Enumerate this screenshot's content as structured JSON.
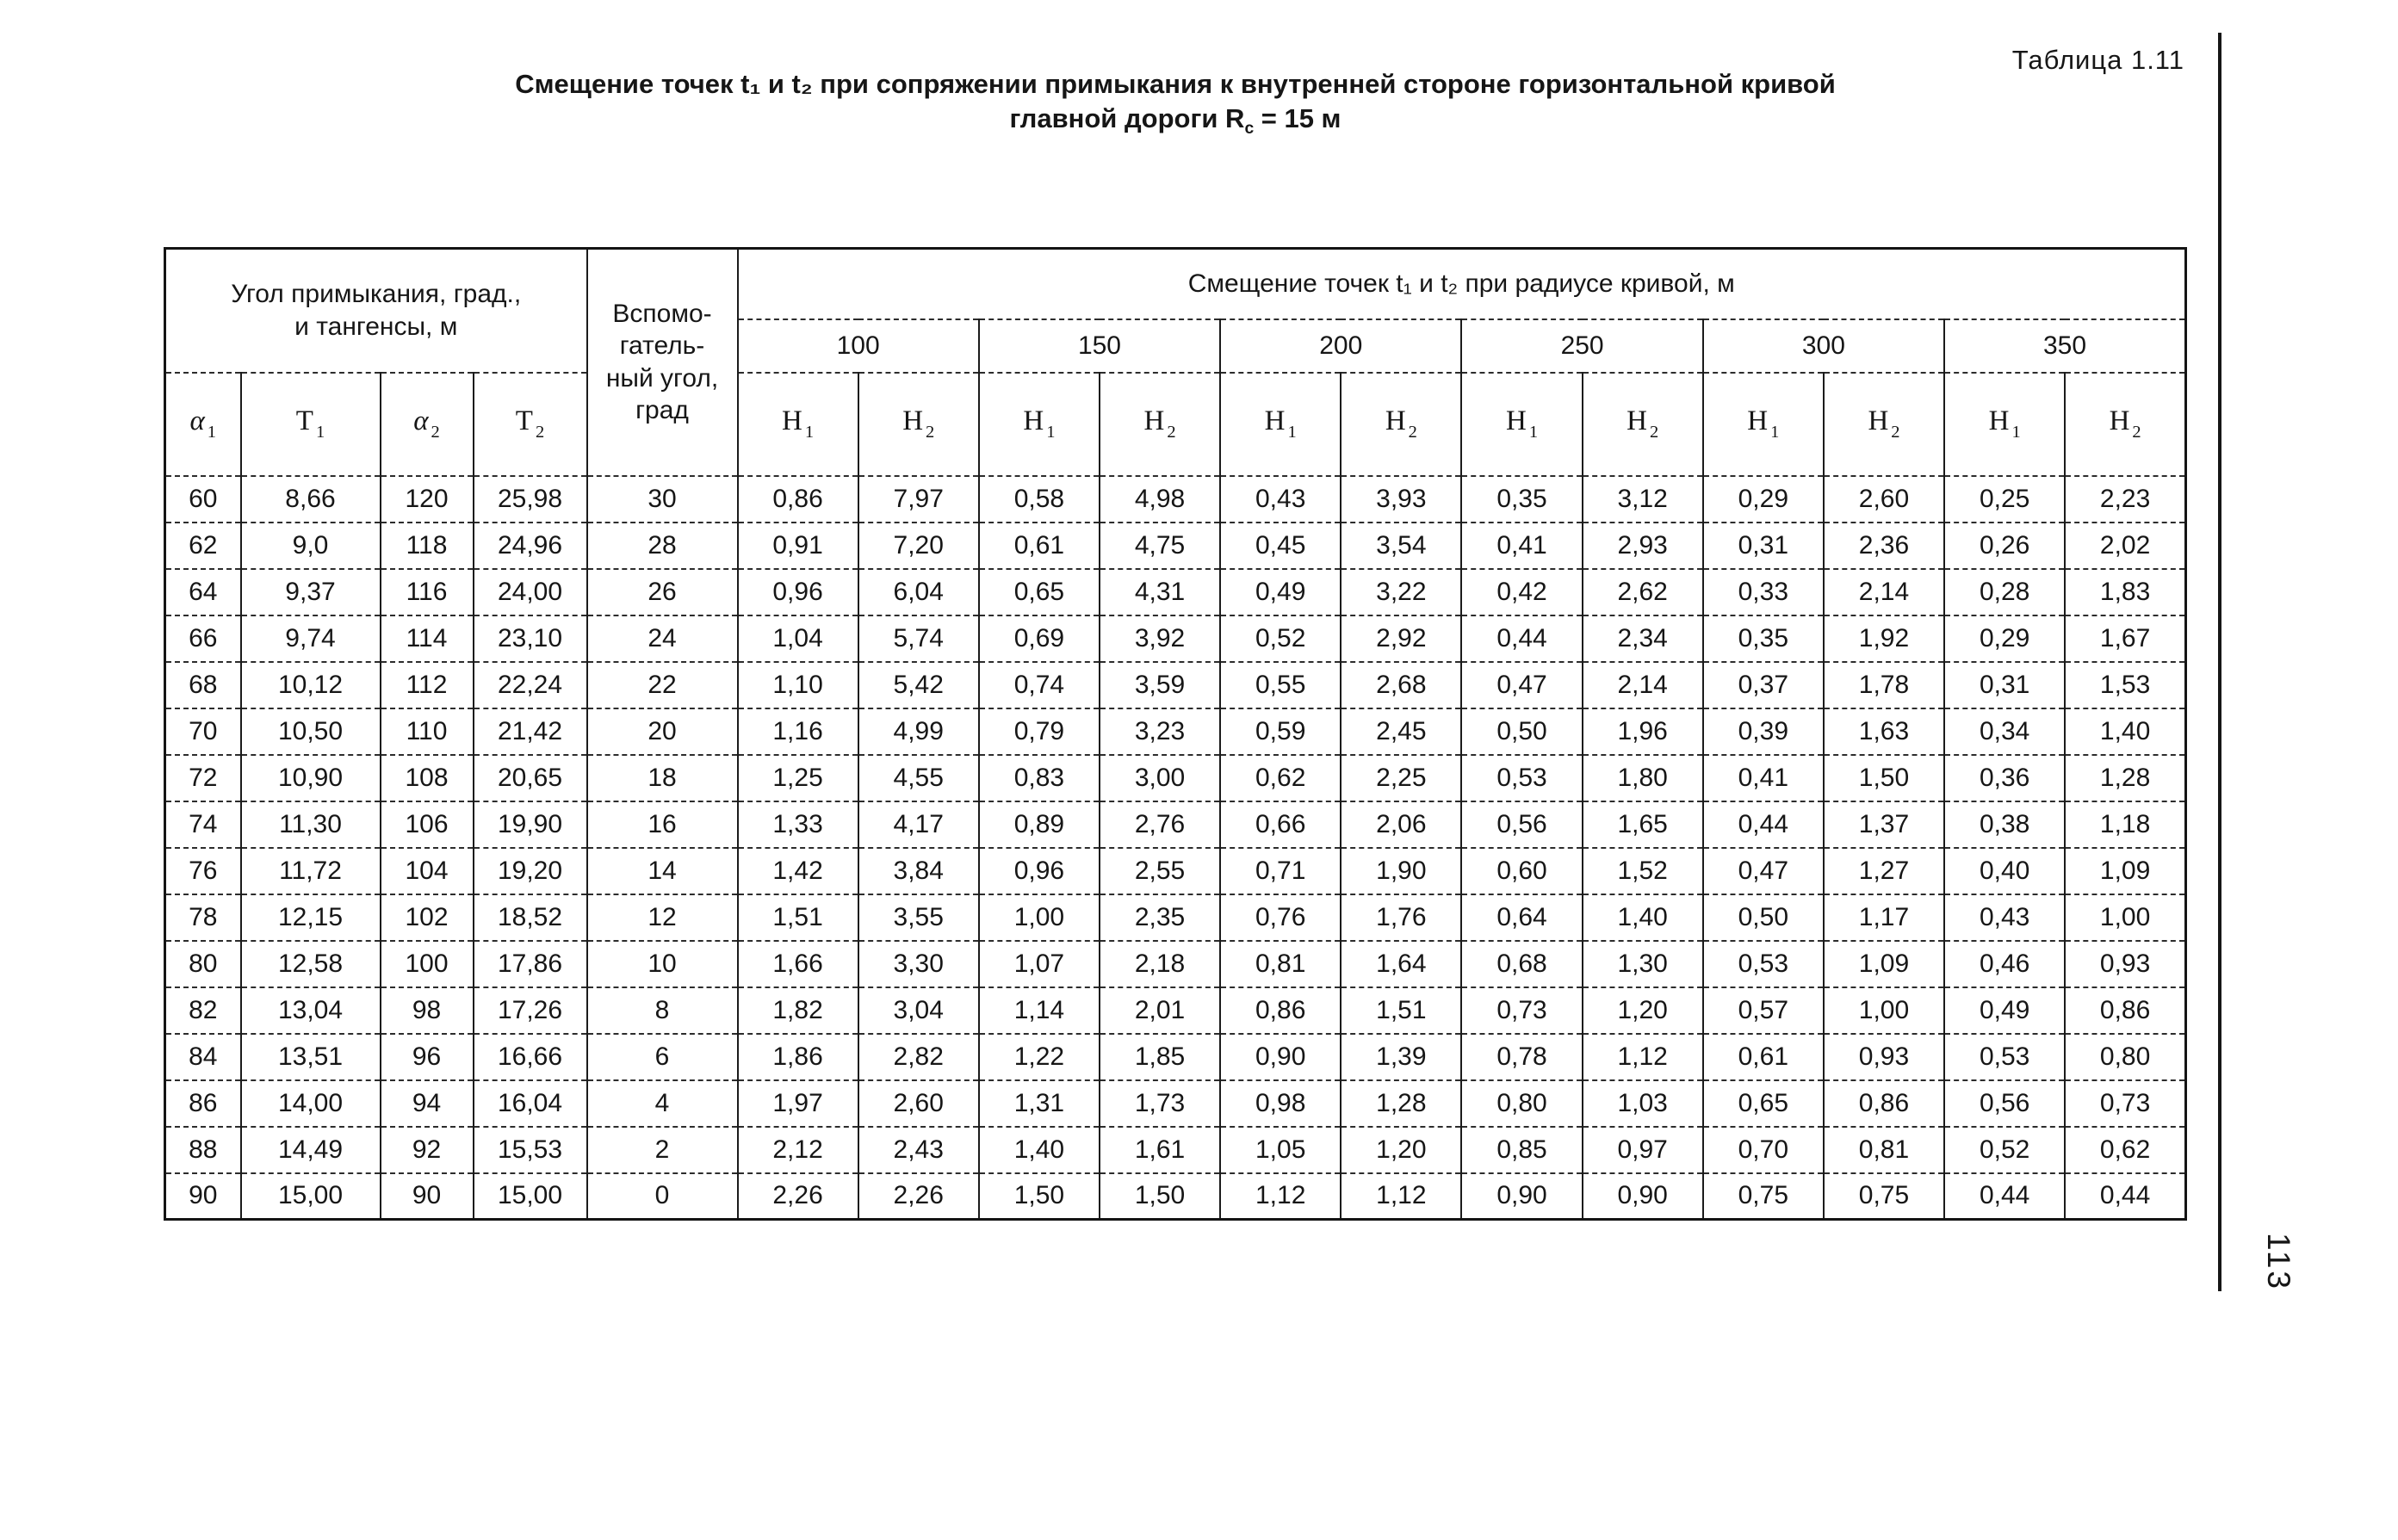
{
  "page": {
    "table_label": "Таблица 1.11",
    "title": {
      "line1": "Смещение точек t₁ и t₂ при сопряжении примыкания к внутренней стороне горизонтальной кривой",
      "line2_pre": "главной дороги R",
      "line2_sub": "с",
      "line2_post": " = 15 м"
    },
    "page_number": "113"
  },
  "table": {
    "corner_header": "Угол примыкания, град.,\nи тангенсы, м",
    "aux_header": "Вспомо-\nгатель-\nный угол,\nград",
    "span_header": "Смещение точек t₁ и t₂ при радиусе кривой, м",
    "angle_cols": [
      {
        "base": "α",
        "sub": "1"
      },
      {
        "base": "Т",
        "sub": "1"
      },
      {
        "base": "α",
        "sub": "2"
      },
      {
        "base": "Т",
        "sub": "2"
      }
    ],
    "h_cols": [
      {
        "base": "Н",
        "sub": "1"
      },
      {
        "base": "Н",
        "sub": "2"
      }
    ],
    "radii": [
      "100",
      "150",
      "200",
      "250",
      "300",
      "350"
    ],
    "rows": [
      [
        "60",
        "8,66",
        "120",
        "25,98",
        "30",
        "0,86",
        "7,97",
        "0,58",
        "4,98",
        "0,43",
        "3,93",
        "0,35",
        "3,12",
        "0,29",
        "2,60",
        "0,25",
        "2,23"
      ],
      [
        "62",
        "9,0",
        "118",
        "24,96",
        "28",
        "0,91",
        "7,20",
        "0,61",
        "4,75",
        "0,45",
        "3,54",
        "0,41",
        "2,93",
        "0,31",
        "2,36",
        "0,26",
        "2,02"
      ],
      [
        "64",
        "9,37",
        "116",
        "24,00",
        "26",
        "0,96",
        "6,04",
        "0,65",
        "4,31",
        "0,49",
        "3,22",
        "0,42",
        "2,62",
        "0,33",
        "2,14",
        "0,28",
        "1,83"
      ],
      [
        "66",
        "9,74",
        "114",
        "23,10",
        "24",
        "1,04",
        "5,74",
        "0,69",
        "3,92",
        "0,52",
        "2,92",
        "0,44",
        "2,34",
        "0,35",
        "1,92",
        "0,29",
        "1,67"
      ],
      [
        "68",
        "10,12",
        "112",
        "22,24",
        "22",
        "1,10",
        "5,42",
        "0,74",
        "3,59",
        "0,55",
        "2,68",
        "0,47",
        "2,14",
        "0,37",
        "1,78",
        "0,31",
        "1,53"
      ],
      [
        "70",
        "10,50",
        "110",
        "21,42",
        "20",
        "1,16",
        "4,99",
        "0,79",
        "3,23",
        "0,59",
        "2,45",
        "0,50",
        "1,96",
        "0,39",
        "1,63",
        "0,34",
        "1,40"
      ],
      [
        "72",
        "10,90",
        "108",
        "20,65",
        "18",
        "1,25",
        "4,55",
        "0,83",
        "3,00",
        "0,62",
        "2,25",
        "0,53",
        "1,80",
        "0,41",
        "1,50",
        "0,36",
        "1,28"
      ],
      [
        "74",
        "11,30",
        "106",
        "19,90",
        "16",
        "1,33",
        "4,17",
        "0,89",
        "2,76",
        "0,66",
        "2,06",
        "0,56",
        "1,65",
        "0,44",
        "1,37",
        "0,38",
        "1,18"
      ],
      [
        "76",
        "11,72",
        "104",
        "19,20",
        "14",
        "1,42",
        "3,84",
        "0,96",
        "2,55",
        "0,71",
        "1,90",
        "0,60",
        "1,52",
        "0,47",
        "1,27",
        "0,40",
        "1,09"
      ],
      [
        "78",
        "12,15",
        "102",
        "18,52",
        "12",
        "1,51",
        "3,55",
        "1,00",
        "2,35",
        "0,76",
        "1,76",
        "0,64",
        "1,40",
        "0,50",
        "1,17",
        "0,43",
        "1,00"
      ],
      [
        "80",
        "12,58",
        "100",
        "17,86",
        "10",
        "1,66",
        "3,30",
        "1,07",
        "2,18",
        "0,81",
        "1,64",
        "0,68",
        "1,30",
        "0,53",
        "1,09",
        "0,46",
        "0,93"
      ],
      [
        "82",
        "13,04",
        "98",
        "17,26",
        "8",
        "1,82",
        "3,04",
        "1,14",
        "2,01",
        "0,86",
        "1,51",
        "0,73",
        "1,20",
        "0,57",
        "1,00",
        "0,49",
        "0,86"
      ],
      [
        "84",
        "13,51",
        "96",
        "16,66",
        "6",
        "1,86",
        "2,82",
        "1,22",
        "1,85",
        "0,90",
        "1,39",
        "0,78",
        "1,12",
        "0,61",
        "0,93",
        "0,53",
        "0,80"
      ],
      [
        "86",
        "14,00",
        "94",
        "16,04",
        "4",
        "1,97",
        "2,60",
        "1,31",
        "1,73",
        "0,98",
        "1,28",
        "0,80",
        "1,03",
        "0,65",
        "0,86",
        "0,56",
        "0,73"
      ],
      [
        "88",
        "14,49",
        "92",
        "15,53",
        "2",
        "2,12",
        "2,43",
        "1,40",
        "1,61",
        "1,05",
        "1,20",
        "0,85",
        "0,97",
        "0,70",
        "0,81",
        "0,52",
        "0,62"
      ],
      [
        "90",
        "15,00",
        "90",
        "15,00",
        "0",
        "2,26",
        "2,26",
        "1,50",
        "1,50",
        "1,12",
        "1,12",
        "0,90",
        "0,90",
        "0,75",
        "0,75",
        "0,44",
        "0,44"
      ]
    ]
  }
}
